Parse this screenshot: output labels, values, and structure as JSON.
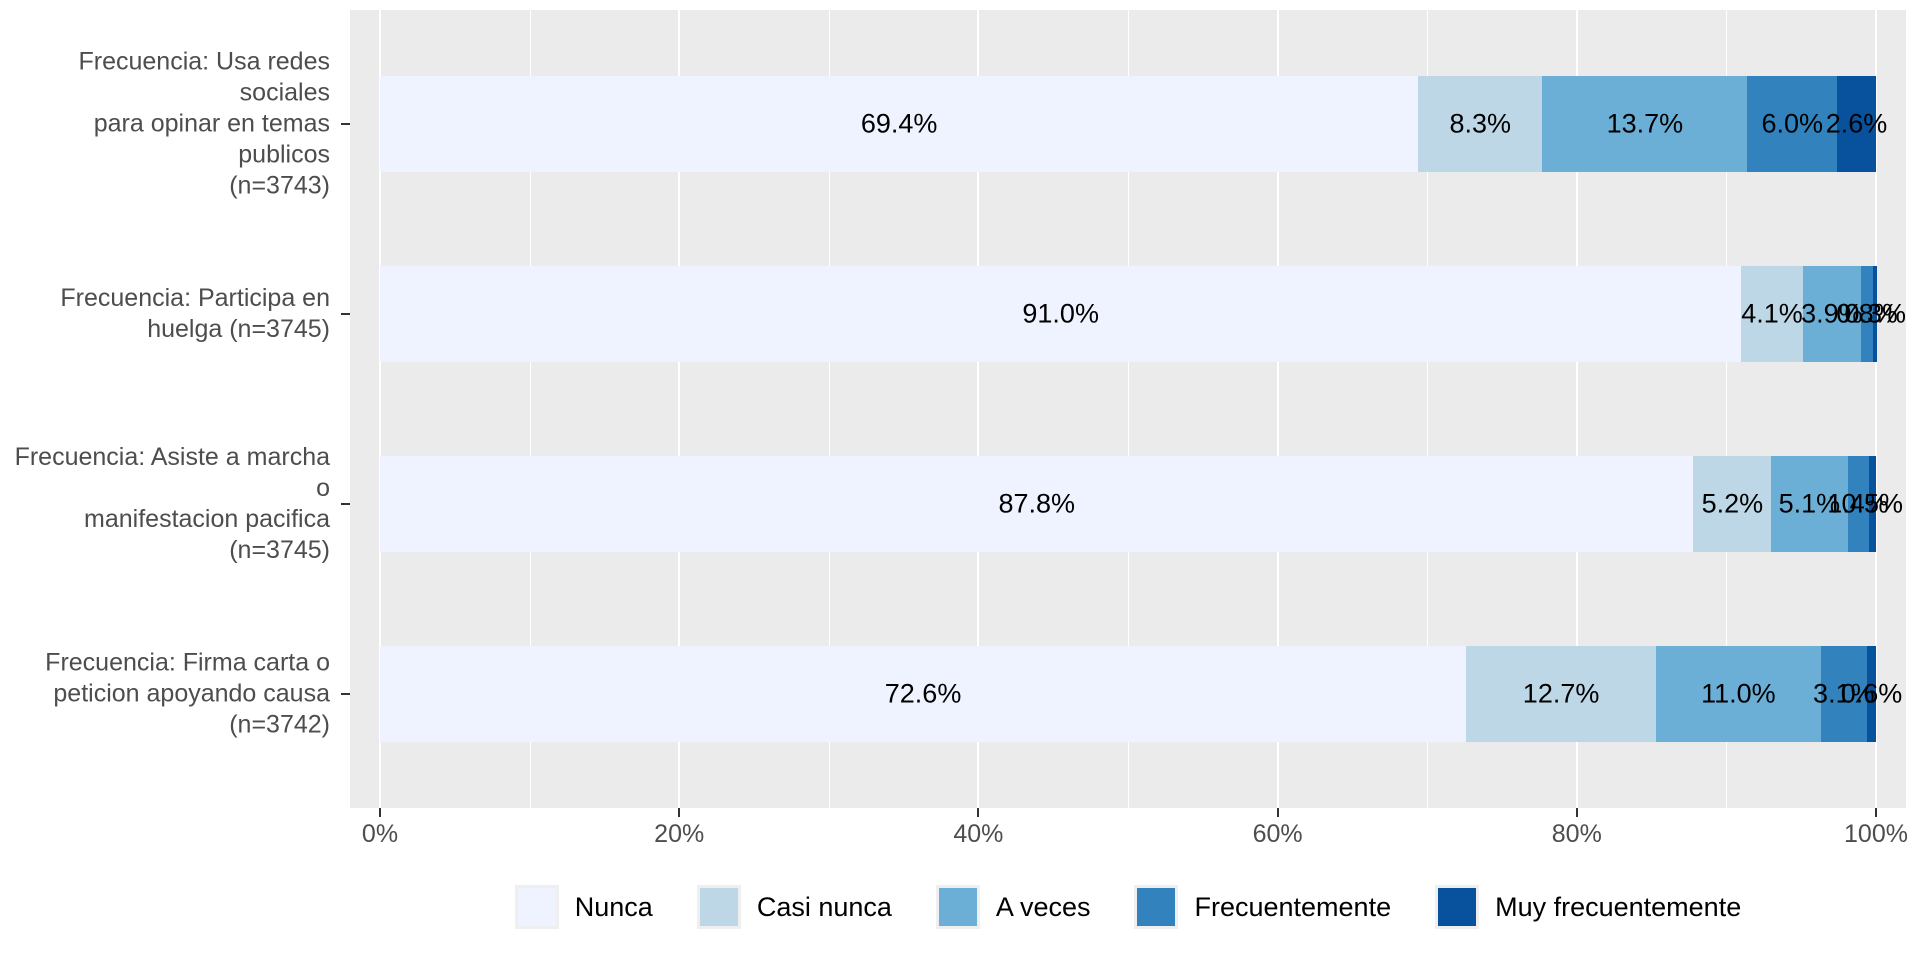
{
  "chart_data": {
    "type": "bar",
    "orientation": "horizontal",
    "stacked": true,
    "unit": "%",
    "title": "",
    "xlabel": "",
    "ylabel": "",
    "xlim": [
      0,
      100
    ],
    "x_ticks": [
      "0%",
      "20%",
      "40%",
      "60%",
      "80%",
      "100%"
    ],
    "x_tick_values": [
      0,
      20,
      40,
      60,
      80,
      100
    ],
    "minor_grid_values": [
      10,
      30,
      50,
      70,
      90
    ],
    "grid": "on",
    "legend_position": "bottom",
    "categories": [
      {
        "lines": [
          "Frecuencia: Usa redes sociales",
          "para opinar en temas publicos",
          "(n=3743)"
        ]
      },
      {
        "lines": [
          "Frecuencia: Participa en",
          "huelga (n=3745)"
        ]
      },
      {
        "lines": [
          "Frecuencia: Asiste a marcha o",
          "manifestacion pacifica",
          "(n=3745)"
        ]
      },
      {
        "lines": [
          "Frecuencia: Firma carta o",
          "peticion apoyando causa",
          "(n=3742)"
        ]
      }
    ],
    "series": [
      {
        "name": "Nunca",
        "color": "#EFF3FF",
        "values": [
          69.4,
          91.0,
          87.8,
          72.6
        ],
        "labels": [
          "69.4%",
          "91.0%",
          "87.8%",
          "72.6%"
        ]
      },
      {
        "name": "Casi nunca",
        "color": "#BDD7E7",
        "values": [
          8.3,
          4.1,
          5.2,
          12.7
        ],
        "labels": [
          "8.3%",
          "4.1%",
          "5.2%",
          "12.7%"
        ]
      },
      {
        "name": "A veces",
        "color": "#6BAED6",
        "values": [
          13.7,
          3.9,
          5.1,
          11.0
        ],
        "labels": [
          "13.7%",
          "3.9%",
          "5.1%",
          "11.0%"
        ]
      },
      {
        "name": "Frecuentemente",
        "color": "#3182BD",
        "values": [
          6.0,
          0.8,
          1.4,
          3.1
        ],
        "labels": [
          "6.0%",
          "0.8%",
          "1.4%",
          "3.1%"
        ]
      },
      {
        "name": "Muy frecuentemente",
        "color": "#08519C",
        "values": [
          2.6,
          0.3,
          0.5,
          0.6
        ],
        "labels": [
          "2.6%",
          "0.3%",
          "0.5%",
          "0.6%"
        ]
      }
    ],
    "legend_labels": [
      "Nunca",
      "Casi nunca",
      "A veces",
      "Frecuentemente",
      "Muy frecuentemente"
    ],
    "colors": {
      "panel_bg": "#EBEBEB",
      "grid": "#FFFFFF",
      "axis_text": "#4D4D4D",
      "bar_label": "#000000",
      "tick": "#333333"
    }
  }
}
